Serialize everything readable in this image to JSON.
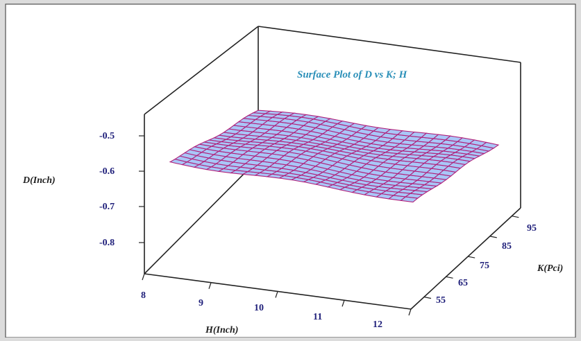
{
  "chart_data": {
    "type": "surface3d",
    "title": "Surface Plot of D vs K; H",
    "zlabel": "D(Inch)",
    "xlabel": "H(Inch)",
    "ylabel": "K(Pci)",
    "z_ticks": [
      "-0.5",
      "-0.6",
      "-0.7",
      "-0.8"
    ],
    "x_ticks": [
      "8",
      "9",
      "10",
      "11",
      "12"
    ],
    "y_ticks": [
      "55",
      "65",
      "75",
      "85",
      "95"
    ],
    "xlim": [
      8,
      12
    ],
    "ylim": [
      50,
      100
    ],
    "zlim": [
      -0.85,
      -0.45
    ],
    "grid_size": [
      21,
      19
    ],
    "surface": {
      "corner_values": {
        "H8_K50": -0.64,
        "H12_K50": -0.7,
        "H8_K100": -0.53,
        "H12_K100": -0.57
      }
    },
    "colors": {
      "surface_fill": "#a9c6f7",
      "surface_lines": "#b0207a",
      "background": "#ffffff",
      "outer_frame": "#dcdcdc"
    }
  }
}
